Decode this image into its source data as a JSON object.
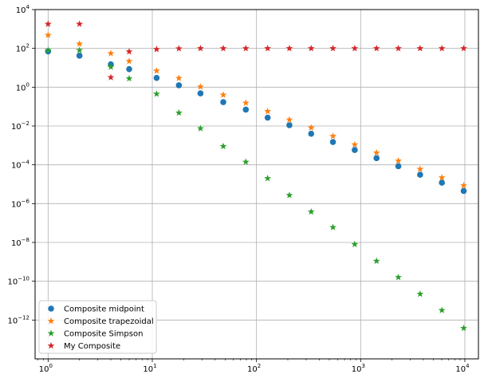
{
  "chart_data": {
    "type": "scatter",
    "title": "",
    "xlabel": "",
    "ylabel": "",
    "xscale": "log",
    "yscale": "log",
    "xlim": [
      0.75,
      13500
    ],
    "ylim": [
      1e-14,
      10000
    ],
    "grid": true,
    "legend_position": "lower-left",
    "x_ticks": [
      {
        "label": "10",
        "exp": "0",
        "value": 1
      },
      {
        "label": "10",
        "exp": "1",
        "value": 10
      },
      {
        "label": "10",
        "exp": "2",
        "value": 100
      },
      {
        "label": "10",
        "exp": "3",
        "value": 1000
      },
      {
        "label": "10",
        "exp": "4",
        "value": 10000
      }
    ],
    "y_ticks": [
      {
        "label": "10",
        "exp": "4",
        "value": 10000
      },
      {
        "label": "10",
        "exp": "2",
        "value": 100
      },
      {
        "label": "10",
        "exp": "0",
        "value": 1
      },
      {
        "label": "10",
        "exp": "−2",
        "value": 0.01
      },
      {
        "label": "10",
        "exp": "−4",
        "value": 0.0001
      },
      {
        "label": "10",
        "exp": "−6",
        "value": 1e-06
      },
      {
        "label": "10",
        "exp": "−8",
        "value": 1e-08
      },
      {
        "label": "10",
        "exp": "−10",
        "value": 1e-10
      },
      {
        "label": "10",
        "exp": "−12",
        "value": 1e-12
      }
    ],
    "x": [
      1,
      2,
      4,
      6,
      11,
      18,
      29,
      48,
      79,
      128,
      207,
      335,
      542,
      877,
      1420,
      2300,
      3720,
      6020,
      9750
    ],
    "series": [
      {
        "name": "Composite midpoint",
        "marker": "circle",
        "color": "#1f77b4",
        "values": [
          70,
          42,
          15,
          8.5,
          3.0,
          1.25,
          0.48,
          0.17,
          0.07,
          0.027,
          0.011,
          0.004,
          0.0015,
          0.00058,
          0.00022,
          8.5e-05,
          3.1e-05,
          1.2e-05,
          4.5e-06
        ]
      },
      {
        "name": "Composite trapezoidal",
        "marker": "star",
        "color": "#ff7f0e",
        "values": [
          480,
          170,
          55,
          22,
          7.0,
          2.9,
          1.05,
          0.4,
          0.155,
          0.057,
          0.021,
          0.0082,
          0.003,
          0.0011,
          0.00042,
          0.00016,
          6e-05,
          2.2e-05,
          8.5e-06
        ]
      },
      {
        "name": "Composite Simpson",
        "marker": "star",
        "color": "#2ca02c",
        "values": [
          80,
          80,
          11,
          2.8,
          0.45,
          0.048,
          0.0075,
          0.0009,
          0.00014,
          2e-05,
          2.7e-06,
          3.8e-07,
          6e-08,
          8e-09,
          1.1e-09,
          1.6e-10,
          2.2e-11,
          3.2e-12,
          3.8e-13
        ]
      },
      {
        "name": "My Composite",
        "marker": "star",
        "color": "#d62728",
        "values": [
          1800,
          1800,
          3.2,
          68,
          90,
          98,
          100,
          100,
          100,
          100,
          100,
          100,
          100,
          100,
          100,
          100,
          100,
          100,
          100
        ]
      }
    ]
  }
}
